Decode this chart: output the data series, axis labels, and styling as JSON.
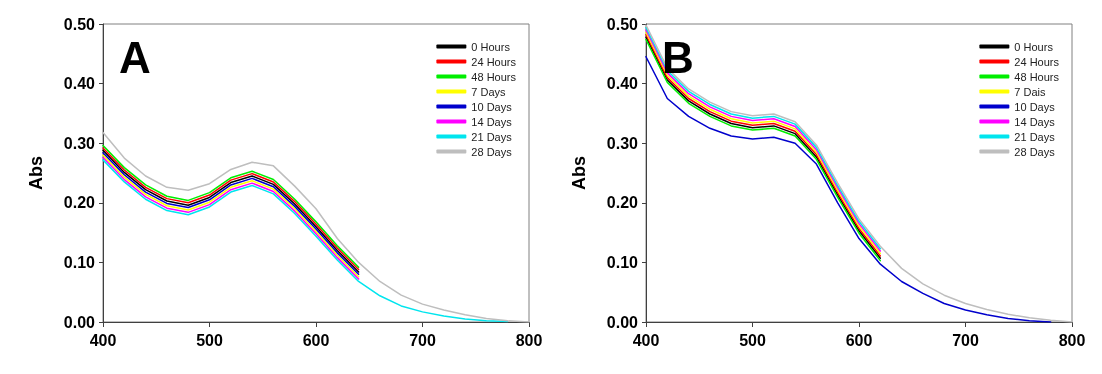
{
  "chart_data": [
    {
      "type": "line",
      "title": "A",
      "ylabel": "Abs",
      "legend": "top right",
      "grid": false,
      "marker": "none",
      "line_style": "solid",
      "x": [
        400,
        420,
        440,
        460,
        480,
        500,
        520,
        540,
        560,
        580,
        600,
        620,
        640,
        660,
        680,
        700,
        720,
        740,
        760,
        780,
        800
      ],
      "xlim": [
        400,
        800
      ],
      "xticks": [
        400,
        500,
        600,
        700,
        800
      ],
      "ylim": [
        0,
        0.5
      ],
      "yticks": [
        {
          "value": 0,
          "label": "0.00"
        },
        {
          "value": 0.1,
          "label": "0.10"
        },
        {
          "value": 0.2,
          "label": "0.20"
        },
        {
          "value": 0.3,
          "label": "0.30"
        },
        {
          "value": 0.4,
          "label": "0.40"
        },
        {
          "value": 0.5,
          "label": "0.50"
        }
      ],
      "series": [
        {
          "name": "0 Hours",
          "color": "#000000",
          "values": [
            0.288,
            0.251,
            0.222,
            0.203,
            0.196,
            0.209,
            0.234,
            0.245,
            0.231,
            0.198,
            0.16,
            0.12,
            0.084,
            null,
            null,
            null,
            null,
            null,
            null,
            null,
            null
          ]
        },
        {
          "name": "24 Hours",
          "color": "#ff0000",
          "values": [
            0.292,
            0.255,
            0.226,
            0.207,
            0.2,
            0.213,
            0.238,
            0.249,
            0.235,
            0.202,
            0.164,
            0.124,
            0.088,
            null,
            null,
            null,
            null,
            null,
            null,
            null,
            null
          ]
        },
        {
          "name": "48 Hours",
          "color": "#00ee00",
          "values": [
            0.296,
            0.259,
            0.23,
            0.211,
            0.204,
            0.217,
            0.242,
            0.253,
            0.239,
            0.206,
            0.168,
            0.128,
            0.092,
            null,
            null,
            null,
            null,
            null,
            null,
            null,
            null
          ]
        },
        {
          "name": "7 Days",
          "color": "#ffff00",
          "values": [
            0.28,
            0.243,
            0.214,
            0.195,
            0.188,
            0.201,
            0.226,
            0.237,
            0.223,
            0.19,
            0.152,
            0.112,
            0.076,
            null,
            null,
            null,
            null,
            null,
            null,
            null,
            null
          ]
        },
        {
          "name": "10 Days",
          "color": "#0000cc",
          "values": [
            0.284,
            0.247,
            0.218,
            0.199,
            0.192,
            0.205,
            0.23,
            0.241,
            0.227,
            0.194,
            0.156,
            0.116,
            0.08,
            null,
            null,
            null,
            null,
            null,
            null,
            null,
            null
          ]
        },
        {
          "name": "14 Days",
          "color": "#ff00ff",
          "values": [
            0.276,
            0.239,
            0.21,
            0.191,
            0.184,
            0.197,
            0.222,
            0.233,
            0.219,
            0.186,
            0.148,
            0.108,
            0.072,
            null,
            null,
            null,
            null,
            null,
            null,
            null,
            null
          ]
        },
        {
          "name": "21 Days",
          "color": "#00e5ee",
          "values": [
            0.272,
            0.235,
            0.206,
            0.187,
            0.18,
            0.193,
            0.218,
            0.229,
            0.215,
            0.182,
            0.144,
            0.104,
            0.068,
            0.044,
            0.027,
            0.017,
            0.01,
            0.005,
            0.002,
            0.001,
            null
          ]
        },
        {
          "name": "28 Days",
          "color": "#bebebe",
          "values": [
            0.318,
            0.275,
            0.245,
            0.226,
            0.221,
            0.232,
            0.256,
            0.268,
            0.262,
            0.228,
            0.19,
            0.14,
            0.1,
            0.068,
            0.045,
            0.03,
            0.02,
            0.012,
            0.006,
            0.002,
            0
          ]
        }
      ]
    },
    {
      "type": "line",
      "title": "B",
      "ylabel": "Abs",
      "legend": "top right",
      "grid": false,
      "marker": "none",
      "line_style": "solid",
      "x": [
        400,
        420,
        440,
        460,
        480,
        500,
        520,
        540,
        560,
        580,
        600,
        620,
        640,
        660,
        680,
        700,
        720,
        740,
        760,
        780,
        800
      ],
      "xlim": [
        400,
        800
      ],
      "xticks": [
        400,
        500,
        600,
        700,
        800
      ],
      "ylim": [
        0,
        0.5
      ],
      "yticks": [
        {
          "value": 0,
          "label": "0.00"
        },
        {
          "value": 0.1,
          "label": "0.10"
        },
        {
          "value": 0.2,
          "label": "0.20"
        },
        {
          "value": 0.3,
          "label": "0.30"
        },
        {
          "value": 0.4,
          "label": "0.40"
        },
        {
          "value": 0.5,
          "label": "0.50"
        }
      ],
      "series": [
        {
          "name": "0 Hours",
          "color": "#000000",
          "values": [
            0.478,
            0.406,
            0.371,
            0.349,
            0.333,
            0.326,
            0.329,
            0.316,
            0.277,
            0.213,
            0.153,
            0.107,
            null,
            null,
            null,
            null,
            null,
            null,
            null,
            null,
            null
          ]
        },
        {
          "name": "24 Hours",
          "color": "#ff0000",
          "values": [
            0.482,
            0.41,
            0.375,
            0.353,
            0.337,
            0.33,
            0.333,
            0.32,
            0.281,
            0.217,
            0.157,
            0.111,
            null,
            null,
            null,
            null,
            null,
            null,
            null,
            null,
            null
          ]
        },
        {
          "name": "48 Hours",
          "color": "#00ee00",
          "values": [
            0.474,
            0.402,
            0.367,
            0.345,
            0.329,
            0.322,
            0.325,
            0.312,
            0.273,
            0.209,
            0.149,
            0.103,
            null,
            null,
            null,
            null,
            null,
            null,
            null,
            null,
            null
          ]
        },
        {
          "name": "7 Dais",
          "color": "#ffff00",
          "values": [
            0.486,
            0.414,
            0.379,
            0.357,
            0.341,
            0.334,
            0.337,
            0.324,
            0.285,
            0.221,
            0.161,
            0.115,
            null,
            null,
            null,
            null,
            null,
            null,
            null,
            null,
            null
          ]
        },
        {
          "name": "10 Days",
          "color": "#0000cc",
          "values": [
            0.445,
            0.375,
            0.345,
            0.325,
            0.312,
            0.307,
            0.31,
            0.3,
            0.265,
            0.2,
            0.14,
            0.097,
            0.068,
            0.048,
            0.031,
            0.02,
            0.012,
            0.006,
            0.002,
            0,
            null
          ]
        },
        {
          "name": "14 Days",
          "color": "#ff00ff",
          "values": [
            0.49,
            0.418,
            0.383,
            0.361,
            0.345,
            0.338,
            0.341,
            0.328,
            0.289,
            0.225,
            0.165,
            0.119,
            null,
            null,
            null,
            null,
            null,
            null,
            null,
            null,
            null
          ]
        },
        {
          "name": "21 Days",
          "color": "#00e5ee",
          "values": [
            0.494,
            0.422,
            0.387,
            0.365,
            0.349,
            0.342,
            0.345,
            0.332,
            0.293,
            0.229,
            0.169,
            0.123,
            null,
            null,
            null,
            null,
            null,
            null,
            null,
            null,
            null
          ]
        },
        {
          "name": "28 Days",
          "color": "#bebebe",
          "values": [
            0.498,
            0.426,
            0.391,
            0.369,
            0.353,
            0.346,
            0.349,
            0.336,
            0.297,
            0.233,
            0.173,
            0.127,
            0.09,
            0.064,
            0.045,
            0.031,
            0.021,
            0.013,
            0.007,
            0.003,
            0
          ]
        }
      ]
    }
  ]
}
